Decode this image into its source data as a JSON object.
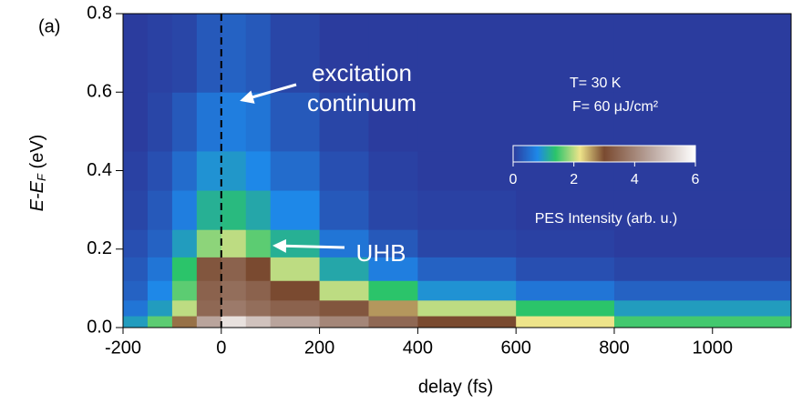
{
  "chart_data": {
    "type": "heatmap",
    "panel_label": "(a)",
    "x_label": "delay (fs)",
    "y_label": [
      "E-E",
      "F",
      " (eV)"
    ],
    "xlim": [
      -200,
      1160
    ],
    "ylim": [
      0,
      0.8
    ],
    "xticks": [
      -200,
      0,
      200,
      400,
      600,
      800,
      1000
    ],
    "yticks": [
      {
        "value": 0,
        "label": "0.0"
      },
      0.2,
      0.4,
      0.6,
      0.8
    ],
    "vline": 0,
    "x_edges": [
      -200,
      -150,
      -100,
      -50,
      0,
      50,
      100,
      200,
      300,
      400,
      600,
      800,
      1160
    ],
    "y_edges": [
      0,
      0.03,
      0.07,
      0.12,
      0.18,
      0.25,
      0.35,
      0.45,
      0.6,
      0.8
    ],
    "z": [
      [
        1.0,
        1.6,
        2.8,
        4.5,
        5.5,
        5.0,
        4.5,
        4.0,
        3.5,
        3.0,
        2.2,
        1.5
      ],
      [
        0.6,
        1.0,
        2.0,
        3.5,
        3.8,
        3.6,
        3.4,
        3.2,
        2.6,
        2.0,
        1.4,
        1.0
      ],
      [
        0.4,
        0.8,
        1.6,
        3.4,
        3.6,
        3.4,
        3.0,
        2.0,
        1.4,
        0.9,
        0.6,
        0.4
      ],
      [
        0.3,
        0.6,
        1.4,
        3.2,
        3.4,
        3.0,
        2.0,
        1.1,
        0.7,
        0.4,
        0.2,
        0.1
      ],
      [
        0.2,
        0.4,
        1.0,
        1.8,
        2.0,
        1.6,
        1.2,
        0.6,
        0.3,
        0.1,
        0.05,
        0
      ],
      [
        0.1,
        0.3,
        0.7,
        1.2,
        1.3,
        1.1,
        0.8,
        0.3,
        0.1,
        0.05,
        0,
        0
      ],
      [
        0.05,
        0.2,
        0.5,
        0.9,
        0.95,
        0.8,
        0.5,
        0.2,
        0.05,
        0,
        0,
        0
      ],
      [
        0,
        0.1,
        0.3,
        0.6,
        0.7,
        0.6,
        0.3,
        0.1,
        0,
        0,
        0,
        0
      ],
      [
        0,
        0.05,
        0.1,
        0.3,
        0.4,
        0.3,
        0.1,
        0,
        0,
        0,
        0,
        0
      ]
    ],
    "colormap": [
      {
        "value": 0,
        "color": "#2b3c9e"
      },
      {
        "value": 0.8,
        "color": "#1e88e8"
      },
      {
        "value": 1.4,
        "color": "#2bc46a"
      },
      {
        "value": 2.2,
        "color": "#eee48a"
      },
      {
        "value": 3.0,
        "color": "#7a4a30"
      },
      {
        "value": 4.5,
        "color": "#b9a49c"
      },
      {
        "value": 6,
        "color": "#ffffff"
      }
    ],
    "colorbar": {
      "label": "PES Intensity (arb. u.)",
      "clim": [
        0,
        6
      ],
      "ticks": [
        0,
        2,
        4,
        6
      ]
    },
    "annotations": [
      "excitation",
      "continuum",
      "UHB",
      "T= 30 K",
      "F= 60 μJ/cm²"
    ]
  }
}
